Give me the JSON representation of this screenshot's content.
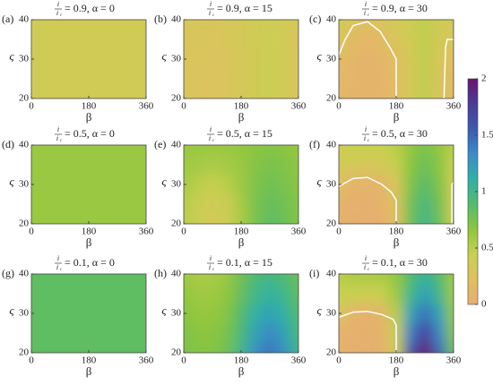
{
  "chart_data": [
    {
      "type": "contour",
      "label": "(a)",
      "title": {
        "num": "i",
        "den": "i",
        "den_sub": "c",
        "text": "= 0.9, α = 0"
      },
      "x": [
        0,
        45,
        90,
        135,
        180,
        225,
        270,
        315,
        360
      ],
      "y": [
        20,
        25,
        30,
        35,
        40
      ],
      "z": [
        [
          0.38,
          0.38,
          0.38,
          0.38,
          0.38,
          0.38,
          0.38,
          0.38,
          0.38
        ],
        [
          0.38,
          0.38,
          0.38,
          0.38,
          0.38,
          0.38,
          0.38,
          0.38,
          0.38
        ],
        [
          0.38,
          0.38,
          0.38,
          0.38,
          0.38,
          0.38,
          0.38,
          0.38,
          0.38
        ],
        [
          0.38,
          0.38,
          0.38,
          0.38,
          0.38,
          0.38,
          0.38,
          0.38,
          0.38
        ],
        [
          0.38,
          0.38,
          0.38,
          0.38,
          0.38,
          0.38,
          0.38,
          0.38,
          0.38
        ]
      ],
      "xlim": [
        0,
        360
      ],
      "ylim": [
        20,
        40
      ],
      "xticks": [
        0,
        180,
        360
      ],
      "yticks": [
        20,
        30,
        40
      ],
      "xlabel": "β",
      "ylabel": "ς",
      "contours": []
    },
    {
      "type": "contour",
      "label": "(b)",
      "title": {
        "num": "i",
        "den": "i",
        "den_sub": "c",
        "text": "= 0.9, α = 15"
      },
      "x": [
        0,
        45,
        90,
        135,
        180,
        225,
        270,
        315,
        360
      ],
      "y": [
        20,
        25,
        30,
        35,
        40
      ],
      "z": [
        [
          0.3,
          0.27,
          0.26,
          0.28,
          0.33,
          0.38,
          0.42,
          0.36,
          0.3
        ],
        [
          0.3,
          0.27,
          0.26,
          0.28,
          0.33,
          0.38,
          0.42,
          0.36,
          0.3
        ],
        [
          0.3,
          0.28,
          0.27,
          0.29,
          0.33,
          0.38,
          0.42,
          0.36,
          0.3
        ],
        [
          0.31,
          0.29,
          0.28,
          0.3,
          0.34,
          0.38,
          0.41,
          0.36,
          0.31
        ],
        [
          0.32,
          0.3,
          0.3,
          0.31,
          0.34,
          0.38,
          0.4,
          0.36,
          0.32
        ]
      ],
      "xlim": [
        0,
        360
      ],
      "ylim": [
        20,
        40
      ],
      "xticks": [
        0,
        180,
        360
      ],
      "yticks": [
        20,
        30,
        40
      ],
      "xlabel": "β",
      "ylabel": "ς",
      "contours": []
    },
    {
      "type": "contour",
      "label": "(c)",
      "title": {
        "num": "i",
        "den": "i",
        "den_sub": "c",
        "text": "= 0.9, α = 30"
      },
      "x": [
        0,
        45,
        90,
        135,
        180,
        225,
        270,
        315,
        360
      ],
      "y": [
        20,
        25,
        30,
        35,
        40
      ],
      "z": [
        [
          0.12,
          0.08,
          0.06,
          0.08,
          0.18,
          0.35,
          0.48,
          0.3,
          0.12
        ],
        [
          0.14,
          0.09,
          0.07,
          0.09,
          0.19,
          0.35,
          0.48,
          0.31,
          0.14
        ],
        [
          0.18,
          0.1,
          0.08,
          0.1,
          0.2,
          0.35,
          0.48,
          0.32,
          0.18
        ],
        [
          0.3,
          0.15,
          0.1,
          0.15,
          0.3,
          0.38,
          0.48,
          0.35,
          0.3
        ],
        [
          0.35,
          0.3,
          0.22,
          0.3,
          0.35,
          0.4,
          0.48,
          0.38,
          0.35
        ]
      ],
      "xlim": [
        0,
        360
      ],
      "ylim": [
        20,
        40
      ],
      "xticks": [
        0,
        180,
        360
      ],
      "yticks": [
        20,
        30,
        40
      ],
      "xlabel": "β",
      "ylabel": "ς",
      "contours": [
        {
          "color": "#ffffff",
          "x": [
            0,
            20,
            45,
            90,
            130,
            160,
            180,
            180
          ],
          "y": [
            31,
            35,
            38.5,
            39.5,
            37,
            33,
            30,
            20
          ]
        },
        {
          "color": "#ffffff",
          "x": [
            330,
            335,
            340,
            360
          ],
          "y": [
            20,
            33,
            35,
            35
          ]
        }
      ]
    },
    {
      "type": "contour",
      "label": "(d)",
      "title": {
        "num": "i",
        "den": "i",
        "den_sub": "c",
        "text": "= 0.5, α = 0"
      },
      "x": [
        0,
        45,
        90,
        135,
        180,
        225,
        270,
        315,
        360
      ],
      "y": [
        20,
        25,
        30,
        35,
        40
      ],
      "z": [
        [
          0.62,
          0.62,
          0.62,
          0.62,
          0.62,
          0.62,
          0.62,
          0.62,
          0.62
        ],
        [
          0.62,
          0.62,
          0.62,
          0.62,
          0.62,
          0.62,
          0.62,
          0.62,
          0.62
        ],
        [
          0.62,
          0.62,
          0.62,
          0.62,
          0.62,
          0.62,
          0.62,
          0.62,
          0.62
        ],
        [
          0.62,
          0.62,
          0.62,
          0.62,
          0.62,
          0.62,
          0.62,
          0.62,
          0.62
        ],
        [
          0.62,
          0.62,
          0.62,
          0.62,
          0.62,
          0.62,
          0.62,
          0.62,
          0.62
        ]
      ],
      "xlim": [
        0,
        360
      ],
      "ylim": [
        20,
        40
      ],
      "xticks": [
        0,
        180,
        360
      ],
      "yticks": [
        20,
        30,
        40
      ],
      "xlabel": "β",
      "ylabel": "ς",
      "contours": []
    },
    {
      "type": "contour",
      "label": "(e)",
      "title": {
        "num": "i",
        "den": "i",
        "den_sub": "c",
        "text": "= 0.5, α = 15"
      },
      "x": [
        0,
        45,
        90,
        135,
        180,
        225,
        270,
        315,
        360
      ],
      "y": [
        20,
        25,
        30,
        35,
        40
      ],
      "z": [
        [
          0.5,
          0.4,
          0.35,
          0.4,
          0.55,
          0.75,
          0.85,
          0.8,
          0.7
        ],
        [
          0.52,
          0.42,
          0.38,
          0.42,
          0.57,
          0.75,
          0.82,
          0.78,
          0.7
        ],
        [
          0.56,
          0.5,
          0.45,
          0.5,
          0.6,
          0.72,
          0.78,
          0.75,
          0.68
        ],
        [
          0.6,
          0.58,
          0.55,
          0.58,
          0.62,
          0.7,
          0.74,
          0.72,
          0.66
        ],
        [
          0.62,
          0.62,
          0.62,
          0.62,
          0.64,
          0.68,
          0.7,
          0.68,
          0.64
        ]
      ],
      "xlim": [
        0,
        360
      ],
      "ylim": [
        20,
        40
      ],
      "xticks": [
        0,
        180,
        360
      ],
      "yticks": [
        20,
        30,
        40
      ],
      "xlabel": "β",
      "ylabel": "ς",
      "contours": []
    },
    {
      "type": "contour",
      "label": "(f)",
      "title": {
        "num": "i",
        "den": "i",
        "den_sub": "c",
        "text": "= 0.5, α = 30"
      },
      "x": [
        0,
        45,
        90,
        135,
        180,
        225,
        270,
        315,
        360
      ],
      "y": [
        20,
        25,
        30,
        35,
        40
      ],
      "z": [
        [
          0.05,
          0.03,
          0.02,
          0.03,
          0.2,
          0.8,
          1.0,
          0.8,
          0.4
        ],
        [
          0.07,
          0.04,
          0.03,
          0.05,
          0.25,
          0.78,
          0.95,
          0.78,
          0.4
        ],
        [
          0.2,
          0.08,
          0.06,
          0.1,
          0.3,
          0.72,
          0.88,
          0.72,
          0.4
        ],
        [
          0.35,
          0.35,
          0.3,
          0.35,
          0.45,
          0.68,
          0.8,
          0.68,
          0.45
        ],
        [
          0.4,
          0.45,
          0.45,
          0.45,
          0.5,
          0.65,
          0.75,
          0.65,
          0.5
        ]
      ],
      "xlim": [
        0,
        360
      ],
      "ylim": [
        20,
        40
      ],
      "xticks": [
        0,
        180,
        360
      ],
      "yticks": [
        20,
        30,
        40
      ],
      "xlabel": "β",
      "ylabel": "ς",
      "contours": [
        {
          "color": "#ffffff",
          "x": [
            0,
            45,
            90,
            135,
            165,
            180,
            180
          ],
          "y": [
            29.5,
            31.5,
            31.8,
            30,
            28,
            26,
            20
          ]
        },
        {
          "color": "#ffffff",
          "x": [
            355,
            355,
            360
          ],
          "y": [
            20,
            30,
            30.5
          ]
        }
      ]
    },
    {
      "type": "contour",
      "label": "(g)",
      "title": {
        "num": "i",
        "den": "i",
        "den_sub": "c",
        "text": "= 0.1, α = 0"
      },
      "x": [
        0,
        45,
        90,
        135,
        180,
        225,
        270,
        315,
        360
      ],
      "y": [
        20,
        25,
        30,
        35,
        40
      ],
      "z": [
        [
          0.85,
          0.85,
          0.85,
          0.85,
          0.85,
          0.85,
          0.85,
          0.85,
          0.85
        ],
        [
          0.85,
          0.85,
          0.85,
          0.85,
          0.85,
          0.85,
          0.85,
          0.85,
          0.85
        ],
        [
          0.85,
          0.85,
          0.85,
          0.85,
          0.85,
          0.85,
          0.85,
          0.85,
          0.85
        ],
        [
          0.85,
          0.85,
          0.85,
          0.85,
          0.85,
          0.85,
          0.85,
          0.85,
          0.85
        ],
        [
          0.85,
          0.85,
          0.85,
          0.85,
          0.85,
          0.85,
          0.85,
          0.85,
          0.85
        ]
      ],
      "xlim": [
        0,
        360
      ],
      "ylim": [
        20,
        40
      ],
      "xticks": [
        0,
        180,
        360
      ],
      "yticks": [
        20,
        30,
        40
      ],
      "xlabel": "β",
      "ylabel": "ς",
      "contours": []
    },
    {
      "type": "contour",
      "label": "(h)",
      "title": {
        "num": "i",
        "den": "i",
        "den_sub": "c",
        "text": "= 0.1, α = 15"
      },
      "x": [
        0,
        45,
        90,
        135,
        180,
        225,
        270,
        315,
        360
      ],
      "y": [
        20,
        25,
        30,
        35,
        40
      ],
      "z": [
        [
          0.75,
          0.7,
          0.7,
          0.78,
          1.0,
          1.3,
          1.45,
          1.3,
          1.0
        ],
        [
          0.72,
          0.68,
          0.68,
          0.75,
          0.95,
          1.2,
          1.35,
          1.2,
          0.95
        ],
        [
          0.68,
          0.64,
          0.64,
          0.7,
          0.9,
          1.1,
          1.2,
          1.1,
          0.9
        ],
        [
          0.65,
          0.6,
          0.6,
          0.66,
          0.82,
          1.0,
          1.08,
          1.0,
          0.85
        ],
        [
          0.6,
          0.56,
          0.56,
          0.62,
          0.78,
          0.92,
          0.98,
          0.92,
          0.8
        ]
      ],
      "xlim": [
        0,
        360
      ],
      "ylim": [
        20,
        40
      ],
      "xticks": [
        0,
        180,
        360
      ],
      "yticks": [
        20,
        30,
        40
      ],
      "xlabel": "β",
      "ylabel": "ς",
      "contours": []
    },
    {
      "type": "contour",
      "label": "(i)",
      "title": {
        "num": "i",
        "den": "i",
        "den_sub": "c",
        "text": "= 0.1, α = 30"
      },
      "x": [
        0,
        45,
        90,
        135,
        180,
        225,
        270,
        315,
        360
      ],
      "y": [
        20,
        25,
        30,
        35,
        40
      ],
      "z": [
        [
          0.05,
          0.03,
          0.02,
          0.04,
          0.4,
          1.6,
          2.0,
          1.5,
          0.8
        ],
        [
          0.06,
          0.04,
          0.03,
          0.05,
          0.45,
          1.4,
          1.75,
          1.35,
          0.7
        ],
        [
          0.3,
          0.06,
          0.05,
          0.1,
          0.5,
          1.2,
          1.45,
          1.2,
          0.65
        ],
        [
          0.45,
          0.45,
          0.4,
          0.45,
          0.6,
          1.0,
          1.2,
          1.0,
          0.6
        ],
        [
          0.5,
          0.55,
          0.55,
          0.55,
          0.65,
          0.9,
          1.05,
          0.9,
          0.6
        ]
      ],
      "xlim": [
        0,
        360
      ],
      "ylim": [
        20,
        40
      ],
      "xticks": [
        0,
        180,
        360
      ],
      "yticks": [
        20,
        30,
        40
      ],
      "xlabel": "β",
      "ylabel": "ς",
      "contours": [
        {
          "color": "#ffffff",
          "x": [
            0,
            45,
            90,
            135,
            170,
            180,
            180
          ],
          "y": [
            29,
            30.3,
            30.5,
            29.7,
            28.5,
            27,
            20
          ]
        }
      ]
    },
    {
      "type": "colorbar",
      "ylim": [
        0,
        2
      ],
      "yticks": [
        0,
        0.5,
        1,
        1.5,
        2
      ],
      "colors": [
        "#e6ae70",
        "#e0c060",
        "#c8d050",
        "#8ec63e",
        "#55bb6a",
        "#2fb0a8",
        "#3a8cc8",
        "#3b5ab0",
        "#4a3a98",
        "#6a1570"
      ]
    }
  ]
}
